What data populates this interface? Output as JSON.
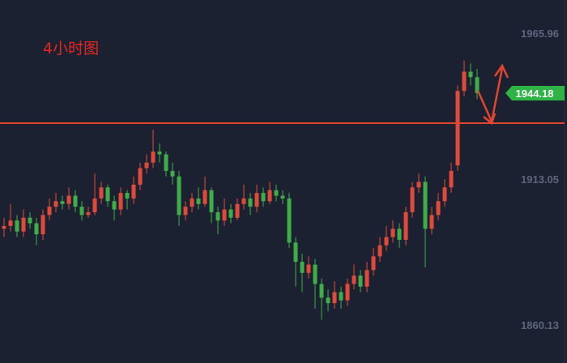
{
  "chart_data": {
    "type": "candlestick",
    "title": "4小时图",
    "up_color": "#e04a3a",
    "down_color": "#3fae49",
    "ylim": [
      1846.3,
      1978.0
    ],
    "yticks": [
      1965.96,
      1913.05,
      1860.13
    ],
    "reference_line": 1933.3,
    "reference_color": "#e0452f",
    "last_price": 1944.18,
    "last_price_color": "#2fb344",
    "open": [
      1895,
      1896,
      1898,
      1894,
      1899,
      1897,
      1893,
      1900,
      1903,
      1905,
      1904,
      1907,
      1903,
      1900,
      1901,
      1906,
      1910,
      1905,
      1902,
      1908,
      1906,
      1911,
      1917,
      1919,
      1923,
      1922,
      1916,
      1914,
      1900,
      1903,
      1906,
      1904,
      1909,
      1901,
      1898,
      1902,
      1899,
      1904,
      1906,
      1903,
      1908,
      1905,
      1909,
      1907,
      1906,
      1890,
      1883,
      1879,
      1882,
      1875,
      1870,
      1868,
      1872,
      1869,
      1875,
      1878,
      1874,
      1880,
      1885,
      1889,
      1892,
      1895,
      1891,
      1901,
      1910,
      1912,
      1895,
      1900,
      1905,
      1910,
      1918,
      1945,
      1952,
      1950
    ],
    "high": [
      1899,
      1904,
      1900,
      1902,
      1901,
      1899,
      1902,
      1906,
      1908,
      1907,
      1910,
      1909,
      1905,
      1903,
      1915,
      1912,
      1911,
      1907,
      1910,
      1909,
      1914,
      1919,
      1922,
      1931,
      1926,
      1923,
      1919,
      1916,
      1905,
      1908,
      1910,
      1914,
      1910,
      1903,
      1906,
      1904,
      1906,
      1911,
      1908,
      1911,
      1910,
      1912,
      1911,
      1909,
      1908,
      1892,
      1886,
      1885,
      1884,
      1877,
      1873,
      1876,
      1874,
      1877,
      1882,
      1880,
      1883,
      1888,
      1892,
      1896,
      1898,
      1897,
      1903,
      1912,
      1915,
      1914,
      1903,
      1908,
      1913,
      1919,
      1947,
      1956,
      1955,
      1953
    ],
    "low": [
      1892,
      1894,
      1892,
      1892,
      1895,
      1889,
      1891,
      1898,
      1901,
      1902,
      1902,
      1901,
      1898,
      1899,
      1900,
      1904,
      1903,
      1898,
      1900,
      1902,
      1904,
      1909,
      1915,
      1917,
      1919,
      1914,
      1911,
      1896,
      1898,
      1901,
      1902,
      1903,
      1897,
      1893,
      1896,
      1897,
      1898,
      1902,
      1900,
      1901,
      1903,
      1904,
      1905,
      1904,
      1888,
      1874,
      1872,
      1877,
      1866,
      1862,
      1865,
      1866,
      1866,
      1867,
      1873,
      1872,
      1872,
      1878,
      1883,
      1887,
      1890,
      1888,
      1889,
      1899,
      1908,
      1881,
      1893,
      1898,
      1903,
      1908,
      1916,
      1943,
      1947,
      1942
    ],
    "close": [
      1896,
      1898,
      1894,
      1899,
      1897,
      1893,
      1900,
      1903,
      1905,
      1904,
      1907,
      1903,
      1900,
      1901,
      1906,
      1910,
      1905,
      1902,
      1908,
      1906,
      1911,
      1917,
      1919,
      1923,
      1922,
      1916,
      1914,
      1900,
      1903,
      1906,
      1904,
      1909,
      1901,
      1898,
      1902,
      1899,
      1904,
      1906,
      1903,
      1908,
      1905,
      1909,
      1907,
      1906,
      1890,
      1883,
      1879,
      1882,
      1875,
      1870,
      1868,
      1872,
      1869,
      1875,
      1878,
      1874,
      1880,
      1885,
      1889,
      1892,
      1895,
      1891,
      1901,
      1910,
      1912,
      1895,
      1900,
      1905,
      1910,
      1916,
      1945,
      1952,
      1950,
      1944.18
    ]
  }
}
